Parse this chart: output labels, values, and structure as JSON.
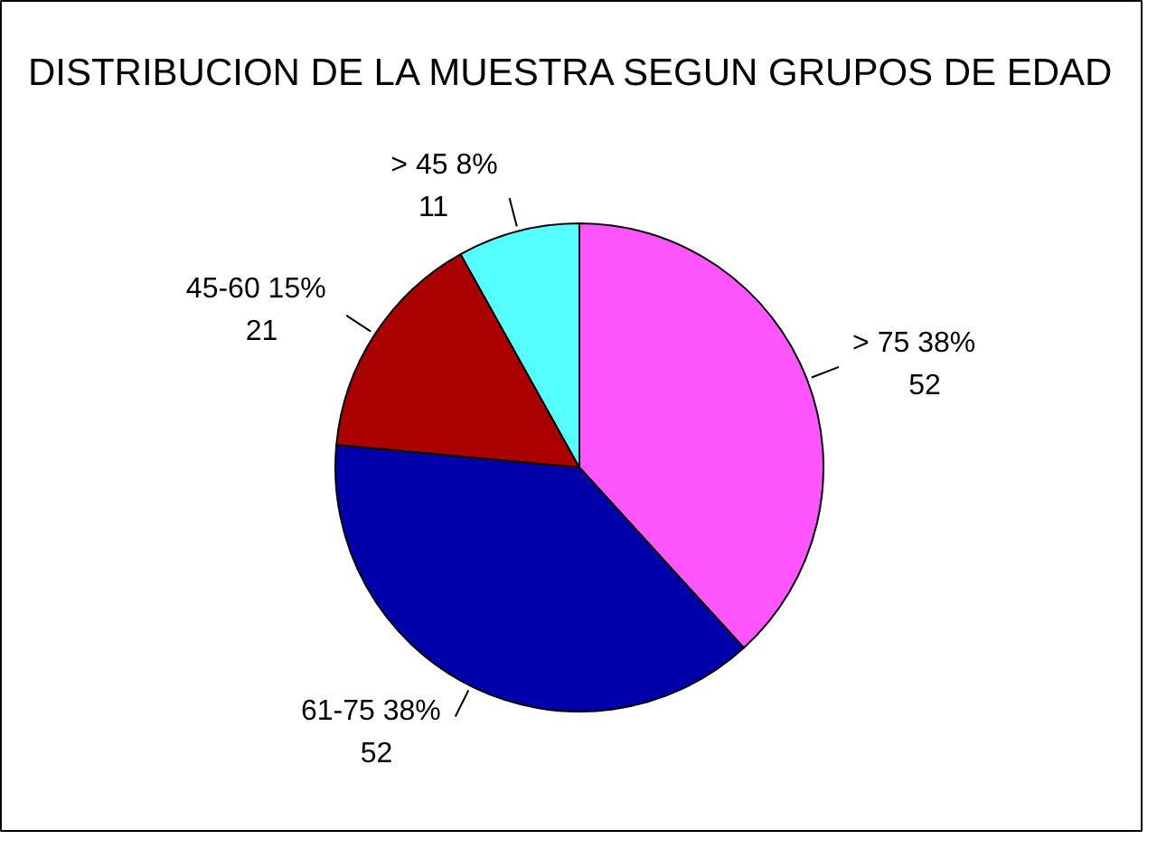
{
  "chart_data": {
    "type": "pie",
    "title": "DISTRIBUCION DE LA MUESTRA SEGUN GRUPOS DE EDAD",
    "categories": [
      "> 75",
      "61-75",
      "45-60",
      "> 45"
    ],
    "values": [
      52,
      52,
      21,
      11
    ],
    "value_labels": [
      "38%\n52",
      "38%\n52",
      "15%\n21",
      "8%\n11"
    ],
    "colors": [
      "#ff55ff",
      "#0000aa",
      "#aa0000",
      "#55ffff"
    ]
  }
}
